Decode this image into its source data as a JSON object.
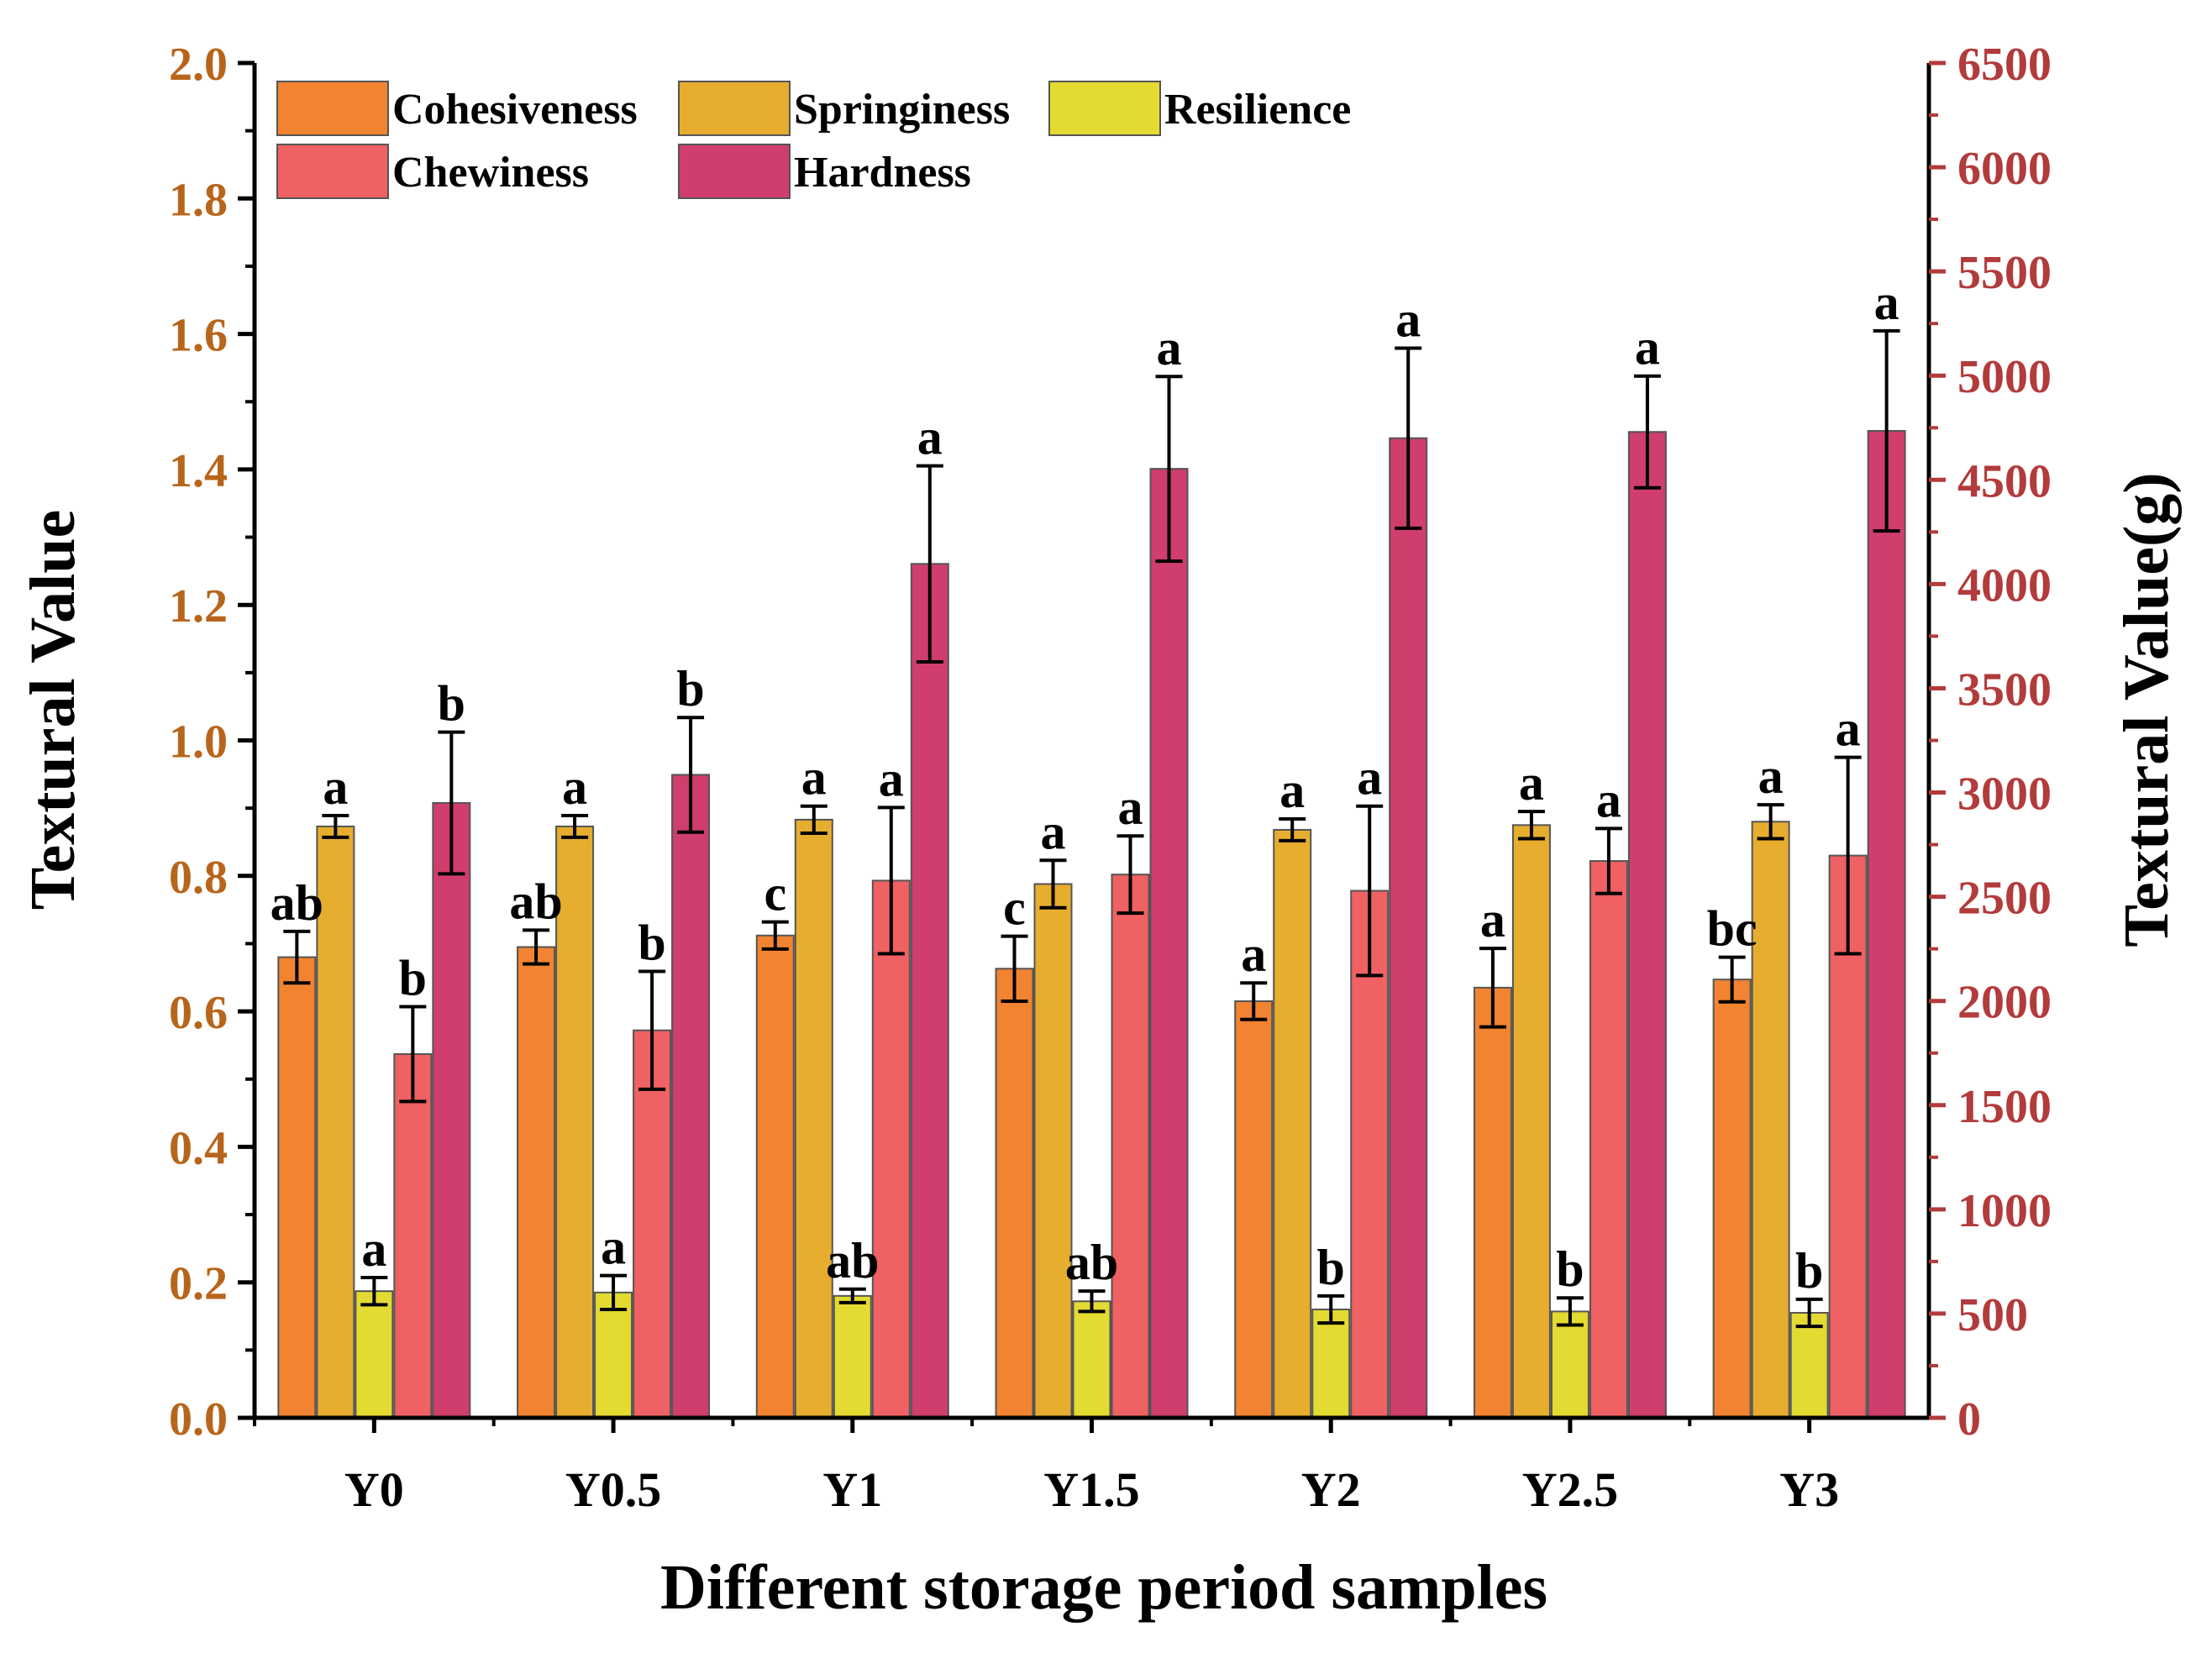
{
  "chart_data": {
    "type": "bar",
    "xlabel": "Different storage period samples",
    "ylabel_left": "Textural Value",
    "ylabel_right": "Textural Value(g)",
    "categories": [
      "Y0",
      "Y0.5",
      "Y1",
      "Y1.5",
      "Y2",
      "Y2.5",
      "Y3"
    ],
    "left_axis": {
      "range": [
        0,
        2.0
      ],
      "ticks": [
        "0.0",
        "0.2",
        "0.4",
        "0.6",
        "0.8",
        "1.0",
        "1.2",
        "1.4",
        "1.6",
        "1.8",
        "2.0"
      ],
      "color": "#b8651b"
    },
    "right_axis": {
      "range": [
        0,
        6500
      ],
      "ticks": [
        "0",
        "500",
        "1000",
        "1500",
        "2000",
        "2500",
        "3000",
        "3500",
        "4000",
        "4500",
        "5000",
        "5500",
        "6000",
        "6500"
      ],
      "color": "#b23b3b"
    },
    "series": [
      {
        "name": "Cohesiveness",
        "axis": "left",
        "color": "#f28330",
        "values": [
          0.68,
          0.695,
          0.712,
          0.663,
          0.615,
          0.635,
          0.647
        ],
        "errors": [
          0.038,
          0.025,
          0.02,
          0.048,
          0.027,
          0.058,
          0.033
        ],
        "letters": [
          "ab",
          "ab",
          "c",
          "c",
          "a",
          "a",
          "bc"
        ]
      },
      {
        "name": "Springiness",
        "axis": "left",
        "color": "#e6ad2e",
        "values": [
          0.873,
          0.873,
          0.883,
          0.788,
          0.868,
          0.875,
          0.88
        ],
        "errors": [
          0.016,
          0.016,
          0.02,
          0.035,
          0.016,
          0.02,
          0.025
        ],
        "letters": [
          "a",
          "a",
          "a",
          "a",
          "a",
          "a",
          "a"
        ]
      },
      {
        "name": "Resilience",
        "axis": "left",
        "color": "#e3da32",
        "values": [
          0.187,
          0.185,
          0.18,
          0.172,
          0.16,
          0.157,
          0.155
        ],
        "errors": [
          0.02,
          0.025,
          0.01,
          0.015,
          0.02,
          0.02,
          0.02
        ],
        "letters": [
          "a",
          "a",
          "ab",
          "ab",
          "b",
          "b",
          "b"
        ]
      },
      {
        "name": "Chewiness",
        "axis": "left",
        "color": "#ef6162",
        "values": [
          0.537,
          0.572,
          0.793,
          0.802,
          0.778,
          0.822,
          0.83
        ],
        "errors": [
          0.07,
          0.087,
          0.108,
          0.057,
          0.125,
          0.048,
          0.145
        ],
        "letters": [
          "b",
          "b",
          "a",
          "a",
          "a",
          "a",
          "a"
        ]
      },
      {
        "name": "Hardness",
        "axis": "right",
        "color": "#cf3e6c",
        "values": [
          2950,
          3085,
          4097,
          4553,
          4700,
          4730,
          4735
        ],
        "errors": [
          340,
          275,
          470,
          443,
          432,
          268,
          480
        ],
        "letters": [
          "b",
          "b",
          "a",
          "a",
          "a",
          "a",
          "a"
        ]
      }
    ]
  }
}
